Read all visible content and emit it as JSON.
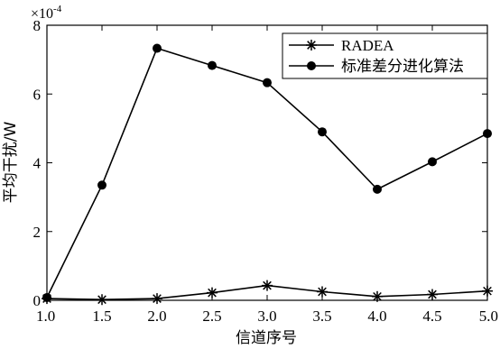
{
  "chart_data": {
    "type": "line",
    "xlabel": "信道序号",
    "ylabel": "平均干扰/W",
    "y_multiplier_base": "×10",
    "y_multiplier_exp": "-4",
    "xlim": [
      1.0,
      5.0
    ],
    "ylim": [
      0,
      8
    ],
    "x_ticks": [
      "1.0",
      "1.5",
      "2.0",
      "2.5",
      "3.0",
      "3.5",
      "4.0",
      "4.5",
      "5.0"
    ],
    "y_ticks": [
      "0",
      "2",
      "4",
      "6",
      "8"
    ],
    "grid": false,
    "legend_position": "top-right",
    "x": [
      1.0,
      1.5,
      2.0,
      2.5,
      3.0,
      3.5,
      4.0,
      4.5,
      5.0
    ],
    "series": [
      {
        "name": "RADEA",
        "marker": "asterisk",
        "color": "#000000",
        "values": [
          0.05,
          0.02,
          0.05,
          0.22,
          0.43,
          0.25,
          0.11,
          0.17,
          0.27
        ]
      },
      {
        "name": "标准差分进化算法",
        "marker": "filled-circle",
        "color": "#000000",
        "values": [
          0.08,
          3.35,
          7.33,
          6.83,
          6.33,
          4.9,
          3.23,
          4.03,
          4.85
        ]
      }
    ]
  }
}
